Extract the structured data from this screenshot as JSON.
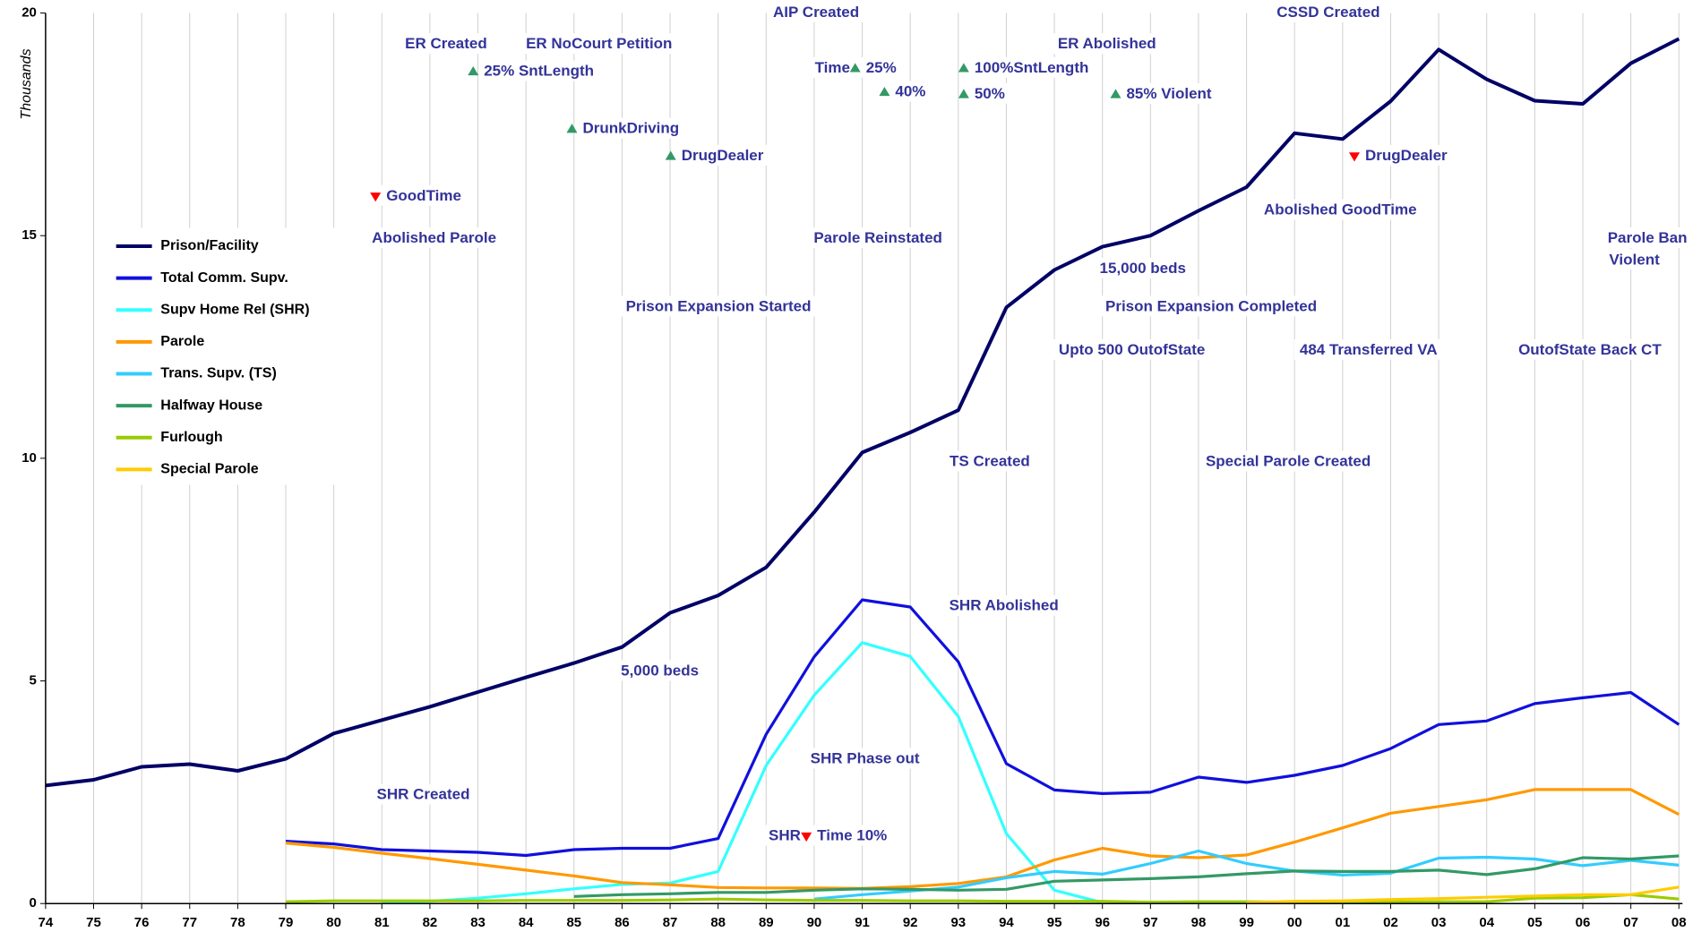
{
  "chart_data": {
    "type": "line",
    "ylabel": "Thousands",
    "categories": [
      "74",
      "75",
      "76",
      "77",
      "78",
      "79",
      "80",
      "81",
      "82",
      "83",
      "84",
      "85",
      "86",
      "87",
      "88",
      "89",
      "90",
      "91",
      "92",
      "93",
      "94",
      "95",
      "96",
      "97",
      "98",
      "99",
      "00",
      "01",
      "02",
      "03",
      "04",
      "05",
      "06",
      "07",
      "08"
    ],
    "ylim": [
      0,
      20
    ],
    "yticks": [
      0,
      5,
      10,
      15,
      20
    ],
    "grid": "vertical",
    "legend": "upper left",
    "series": [
      {
        "name": "Prison/Facility",
        "color": "#000066",
        "values": [
          2.65,
          2.78,
          3.07,
          3.13,
          2.98,
          3.25,
          3.82,
          4.12,
          4.42,
          4.75,
          5.08,
          5.4,
          5.76,
          6.53,
          6.92,
          7.55,
          8.79,
          10.13,
          10.58,
          11.08,
          13.39,
          14.23,
          14.75,
          15.0,
          15.56,
          16.09,
          17.3,
          17.17,
          18.02,
          19.18,
          18.51,
          18.03,
          17.96,
          18.87,
          19.42
        ]
      },
      {
        "name": "Total Comm. Supv.",
        "color": "#1010dd",
        "values": [
          null,
          null,
          null,
          null,
          null,
          1.4,
          1.34,
          1.21,
          1.18,
          1.15,
          1.08,
          1.21,
          1.24,
          1.24,
          1.46,
          3.8,
          5.54,
          6.82,
          6.66,
          5.43,
          3.14,
          2.55,
          2.47,
          2.5,
          2.84,
          2.72,
          2.88,
          3.1,
          3.48,
          4.02,
          4.1,
          4.49,
          4.62,
          4.74,
          4.02
        ]
      },
      {
        "name": "Supv Home Rel (SHR)",
        "color": "#33ffff",
        "values": [
          null,
          null,
          null,
          null,
          null,
          null,
          null,
          0.02,
          0.05,
          0.12,
          0.22,
          0.33,
          0.43,
          0.46,
          0.72,
          3.1,
          4.68,
          5.86,
          5.55,
          4.2,
          1.57,
          0.3,
          0.02,
          null,
          null,
          null,
          null,
          null,
          null,
          null,
          null,
          null,
          null,
          null,
          null
        ]
      },
      {
        "name": "Parole",
        "color": "#ff9900",
        "values": [
          null,
          null,
          null,
          null,
          null,
          1.36,
          1.26,
          1.13,
          1.01,
          0.88,
          0.75,
          0.62,
          0.47,
          0.42,
          0.36,
          0.35,
          0.35,
          0.34,
          0.38,
          0.45,
          0.6,
          0.98,
          1.24,
          1.07,
          1.03,
          1.09,
          1.38,
          1.7,
          2.03,
          2.18,
          2.33,
          2.56,
          2.56,
          2.56,
          2.0
        ]
      },
      {
        "name": "Trans. Supv. (TS)",
        "color": "#33ccff",
        "values": [
          null,
          null,
          null,
          null,
          null,
          null,
          null,
          null,
          null,
          null,
          null,
          null,
          null,
          null,
          null,
          null,
          0.1,
          0.2,
          0.28,
          0.37,
          0.58,
          0.72,
          0.66,
          0.9,
          1.18,
          0.9,
          0.73,
          0.64,
          0.68,
          1.02,
          1.04,
          1.0,
          0.85,
          0.97,
          0.86
        ]
      },
      {
        "name": "Halfway House",
        "color": "#339966",
        "values": [
          null,
          null,
          null,
          null,
          null,
          null,
          null,
          null,
          null,
          null,
          null,
          0.16,
          0.2,
          0.22,
          0.25,
          0.25,
          0.3,
          0.33,
          0.32,
          0.3,
          0.32,
          0.5,
          0.53,
          0.56,
          0.6,
          0.67,
          0.73,
          0.72,
          0.72,
          0.75,
          0.65,
          0.78,
          1.03,
          1.0,
          1.07
        ]
      },
      {
        "name": "Furlough",
        "color": "#99cc00",
        "values": [
          null,
          null,
          null,
          null,
          null,
          0.04,
          0.06,
          0.06,
          0.06,
          0.06,
          0.07,
          0.07,
          0.07,
          0.08,
          0.1,
          0.08,
          0.07,
          0.07,
          0.06,
          0.06,
          0.05,
          0.05,
          0.05,
          0.03,
          0.04,
          0.04,
          0.03,
          0.03,
          0.03,
          0.04,
          0.04,
          0.12,
          0.13,
          0.2,
          0.1
        ]
      },
      {
        "name": "Special Parole",
        "color": "#ffcc00",
        "values": [
          null,
          null,
          null,
          null,
          null,
          null,
          null,
          null,
          null,
          null,
          null,
          null,
          null,
          null,
          null,
          null,
          null,
          null,
          null,
          null,
          null,
          null,
          null,
          null,
          null,
          0.02,
          0.05,
          0.06,
          0.09,
          0.11,
          0.14,
          0.17,
          0.2,
          0.2,
          0.37
        ]
      }
    ],
    "annotations": [
      {
        "text": "AIP Created"
      },
      {
        "text": "CSSD Created"
      },
      {
        "text": "ER Created"
      },
      {
        "text": "ER NoCourt Petition"
      },
      {
        "text": "ER Abolished"
      },
      {
        "text": "25% SntLength",
        "marker": "up"
      },
      {
        "text": "Time"
      },
      {
        "text": "25%",
        "marker": "up"
      },
      {
        "text": "40%",
        "marker": "up"
      },
      {
        "text": "100%SntLength",
        "marker": "up"
      },
      {
        "text": "50%",
        "marker": "up"
      },
      {
        "text": "85% Violent",
        "marker": "up"
      },
      {
        "text": "DrunkDriving",
        "marker": "up"
      },
      {
        "text": "DrugDealer",
        "marker": "up"
      },
      {
        "text": "DrugDealer",
        "marker": "down"
      },
      {
        "text": "GoodTime",
        "marker": "down"
      },
      {
        "text": "Abolished Parole"
      },
      {
        "text": "Parole Reinstated"
      },
      {
        "text": "Abolished GoodTime"
      },
      {
        "text": "Parole Ban"
      },
      {
        "text": "Violent"
      },
      {
        "text": "15,000 beds"
      },
      {
        "text": "Prison Expansion Started"
      },
      {
        "text": "Prison Expansion Completed"
      },
      {
        "text": "Upto 500 OutofState"
      },
      {
        "text": "484 Transferred VA"
      },
      {
        "text": "OutofState Back CT"
      },
      {
        "text": "TS Created"
      },
      {
        "text": "Special Parole Created"
      },
      {
        "text": "SHR Abolished"
      },
      {
        "text": "5,000 beds"
      },
      {
        "text": "SHR Phase out"
      },
      {
        "text": "SHR Created"
      },
      {
        "text": "SHR"
      },
      {
        "text": "Time 10%",
        "marker": "down"
      }
    ]
  }
}
